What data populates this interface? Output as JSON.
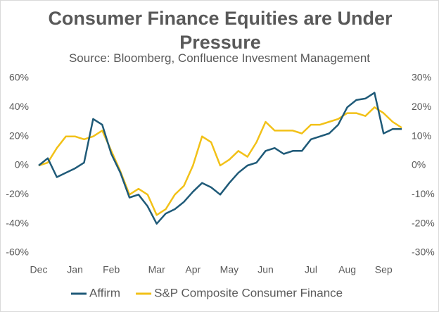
{
  "chart_data": {
    "type": "line",
    "title": "Consumer Finance Equities are Under Pressure",
    "subtitle": "Source: Bloomberg, Confluence Invesment Management",
    "categories": [
      "Dec",
      null,
      null,
      null,
      "Jan",
      null,
      null,
      null,
      "Feb",
      null,
      null,
      null,
      null,
      "Mar",
      null,
      null,
      null,
      "Apr",
      null,
      null,
      null,
      "May",
      null,
      null,
      null,
      "Jun",
      null,
      null,
      null,
      null,
      "Jul",
      null,
      null,
      null,
      "Aug",
      null,
      null,
      null,
      "Sep",
      null,
      null
    ],
    "series": [
      {
        "name": "Affirm",
        "color": "#1f5a78",
        "values": [
          0,
          5,
          -8,
          -5,
          -2,
          2,
          32,
          28,
          8,
          -5,
          -22,
          -20,
          -28,
          -40,
          -33,
          -30,
          -25,
          -18,
          -12,
          -15,
          -20,
          -12,
          -5,
          0,
          2,
          10,
          12,
          8,
          10,
          10,
          18,
          20,
          22,
          28,
          40,
          45,
          46,
          50,
          22,
          25,
          25
        ]
      },
      {
        "name": "S&P Composite Consumer Finance",
        "color": "#f2c118",
        "axis": "y2",
        "values": [
          0,
          1,
          6,
          10,
          10,
          9,
          10,
          12,
          5,
          -2,
          -10,
          -8,
          -10,
          -17,
          -15,
          -10,
          -7,
          0,
          10,
          8,
          0,
          2,
          5,
          3,
          8,
          15,
          12,
          12,
          12,
          11,
          14,
          14,
          15,
          16,
          18,
          18,
          17,
          20,
          18,
          15,
          13
        ]
      }
    ],
    "ylim": [
      -60,
      60
    ],
    "yticks": [
      {
        "value": -60,
        "label": "-60%"
      },
      {
        "value": -40,
        "label": "-40%"
      },
      {
        "value": -20,
        "label": "-20%"
      },
      {
        "value": 0,
        "label": "0%"
      },
      {
        "value": 20,
        "label": "20%"
      },
      {
        "value": 40,
        "label": "40%"
      },
      {
        "value": 60,
        "label": "60%"
      }
    ],
    "y2lim": [
      -30,
      30
    ],
    "y2ticks": [
      {
        "value": -30,
        "label": "-30%"
      },
      {
        "value": -20,
        "label": "-20%"
      },
      {
        "value": -10,
        "label": "-10%"
      },
      {
        "value": 0,
        "label": "0%"
      },
      {
        "value": 10,
        "label": "10%"
      },
      {
        "value": 20,
        "label": "20%"
      },
      {
        "value": 30,
        "label": "30%"
      }
    ],
    "grid": false,
    "legend": "bottom"
  }
}
